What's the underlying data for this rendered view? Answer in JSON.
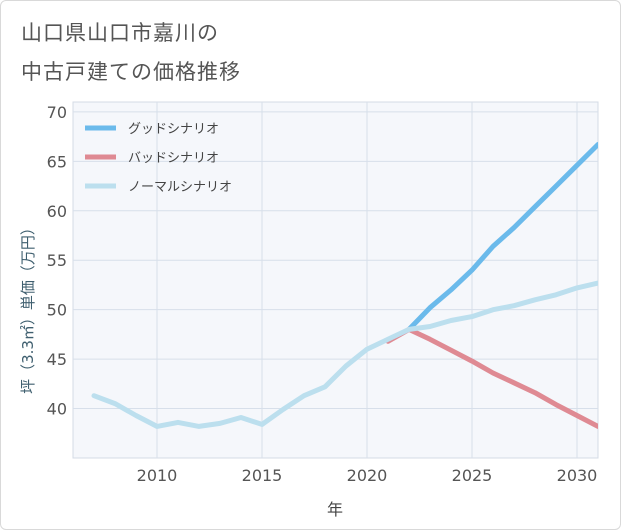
{
  "title": {
    "line1": "山口県山口市嘉川の",
    "line2": "中古戸建ての価格推移"
  },
  "chart_data": {
    "type": "line",
    "xlabel": "年",
    "ylabel": "坪（3.3㎡）単価（万円）",
    "xlim": [
      2006,
      2031
    ],
    "ylim": [
      35,
      71
    ],
    "xticks": [
      2010,
      2015,
      2020,
      2025,
      2030
    ],
    "yticks": [
      40,
      45,
      50,
      55,
      60,
      65,
      70
    ],
    "grid": true,
    "legend_position": "top-left",
    "series": [
      {
        "name": "グッドシナリオ",
        "color": "#6bbaeb",
        "points": [
          [
            2022,
            48.0
          ],
          [
            2023,
            50.2
          ],
          [
            2024,
            52.0
          ],
          [
            2025,
            54.0
          ],
          [
            2026,
            56.4
          ],
          [
            2027,
            58.3
          ],
          [
            2028,
            60.4
          ],
          [
            2029,
            62.5
          ],
          [
            2030,
            64.6
          ],
          [
            2031,
            66.7
          ]
        ]
      },
      {
        "name": "バッドシナリオ",
        "color": "#df8a93",
        "points": [
          [
            2021,
            46.8
          ],
          [
            2022,
            48.0
          ],
          [
            2023,
            47.0
          ],
          [
            2024,
            45.9
          ],
          [
            2025,
            44.8
          ],
          [
            2026,
            43.6
          ],
          [
            2027,
            42.6
          ],
          [
            2028,
            41.6
          ],
          [
            2029,
            40.4
          ],
          [
            2030,
            39.3
          ],
          [
            2031,
            38.2
          ]
        ]
      },
      {
        "name": "ノーマルシナリオ",
        "color": "#bcdfee",
        "points": [
          [
            2007,
            41.3
          ],
          [
            2008,
            40.5
          ],
          [
            2009,
            39.3
          ],
          [
            2010,
            38.2
          ],
          [
            2011,
            38.6
          ],
          [
            2012,
            38.2
          ],
          [
            2013,
            38.5
          ],
          [
            2014,
            39.1
          ],
          [
            2015,
            38.4
          ],
          [
            2016,
            39.9
          ],
          [
            2017,
            41.3
          ],
          [
            2018,
            42.2
          ],
          [
            2019,
            44.3
          ],
          [
            2020,
            46.0
          ],
          [
            2021,
            47.0
          ],
          [
            2022,
            48.0
          ],
          [
            2023,
            48.3
          ],
          [
            2024,
            48.9
          ],
          [
            2025,
            49.3
          ],
          [
            2026,
            50.0
          ],
          [
            2027,
            50.4
          ],
          [
            2028,
            51.0
          ],
          [
            2029,
            51.5
          ],
          [
            2030,
            52.2
          ],
          [
            2031,
            52.7
          ]
        ]
      }
    ]
  }
}
